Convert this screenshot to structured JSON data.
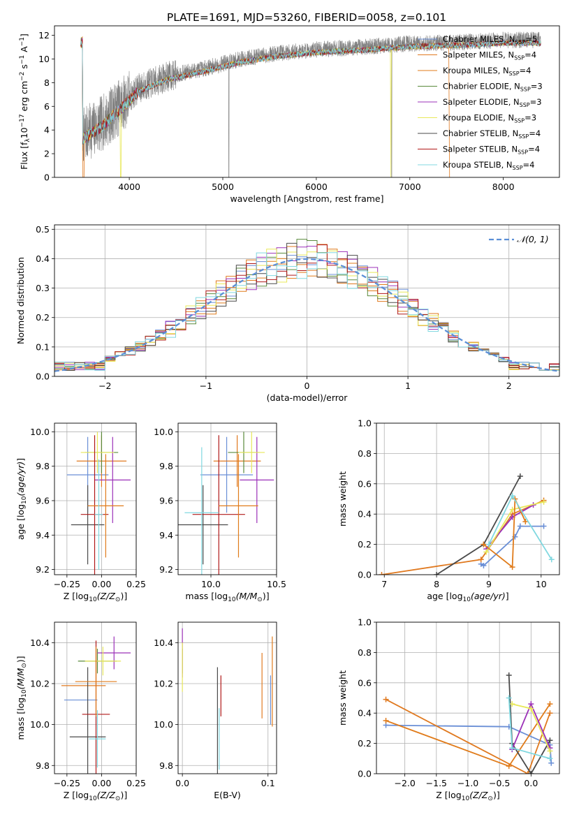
{
  "figure_title": "PLATE=1691, MJD=53260, FIBERID=0058, z=0.101",
  "model_colors": [
    "#6a8fd6",
    "#e0791f",
    "#e07b1a",
    "#5a8a3c",
    "#9b30b8",
    "#e8e85a",
    "#4a4a4a",
    "#b01818",
    "#80d8e0"
  ],
  "legend_labels": [
    {
      "name": "Chabrier MILES",
      "n": "=5"
    },
    {
      "name": "Salpeter MILES",
      "n": "=4"
    },
    {
      "name": "Kroupa MILES",
      "n": "=4"
    },
    {
      "name": "Chabrier ELODIE",
      "n": "=3"
    },
    {
      "name": "Salpeter ELODIE",
      "n": "=3"
    },
    {
      "name": "Kroupa ELODIE",
      "n": "=3"
    },
    {
      "name": "Chabrier STELIB",
      "n": "=4"
    },
    {
      "name": "Salpeter STELIB",
      "n": "=4"
    },
    {
      "name": "Kroupa STELIB",
      "n": "=4"
    }
  ],
  "chart_data": [
    {
      "id": "spectrum",
      "type": "line",
      "xlabel": "wavelength [Angstrom, rest frame]",
      "ylabel": "Flux [f",
      "xlim": [
        3200,
        8600
      ],
      "ylim": [
        0,
        12.8
      ],
      "xticks": [
        4000,
        5000,
        6000,
        7000,
        8000
      ],
      "yticks": [
        0,
        2,
        4,
        6,
        8,
        10,
        12
      ],
      "legend": "top-right",
      "data_shape": {
        "start": 3500,
        "end": 8400,
        "continuum": [
          [
            3500,
            3.5
          ],
          [
            3700,
            4.5
          ],
          [
            3900,
            6.0
          ],
          [
            4100,
            7.5
          ],
          [
            4400,
            8.5
          ],
          [
            4800,
            9.2
          ],
          [
            5200,
            10.0
          ],
          [
            5600,
            10.5
          ],
          [
            6000,
            10.8
          ],
          [
            6500,
            11.0
          ],
          [
            7000,
            11.3
          ],
          [
            7500,
            11.4
          ],
          [
            8000,
            11.6
          ],
          [
            8400,
            11.6
          ]
        ]
      }
    },
    {
      "id": "residuals",
      "type": "line",
      "xlabel": "(data-model)/error",
      "ylabel": "Normed distribution",
      "xlim": [
        -2.5,
        2.5
      ],
      "ylim": [
        0,
        0.515
      ],
      "xticks": [
        -2,
        -1,
        0,
        1,
        2
      ],
      "yticks": [
        0.0,
        0.1,
        0.2,
        0.3,
        0.4,
        0.5
      ],
      "legend": "top-right",
      "reference_label": "𝒩(0, 1)",
      "bin_width": 0.1
    },
    {
      "id": "z-age",
      "type": "scatter",
      "xlabel": "Z [log",
      "ylabel": "age  [log",
      "xlim": [
        -0.34,
        0.25
      ],
      "ylim": [
        9.17,
        10.05
      ],
      "xticks": [
        -0.25,
        0.0,
        0.25
      ],
      "yticks": [
        9.2,
        9.4,
        9.6,
        9.8,
        10.0
      ],
      "points": [
        {
          "x": -0.1,
          "y": 9.75,
          "xerr": 0.15,
          "yerr": 0.22,
          "c": 0
        },
        {
          "x": 0.0,
          "y": 9.83,
          "xerr": 0.18,
          "yerr": 0.15,
          "c": 1
        },
        {
          "x": 0.0,
          "y": 9.88,
          "xerr": 0.12,
          "yerr": 0.12,
          "c": 3
        },
        {
          "x": 0.08,
          "y": 9.72,
          "xerr": 0.13,
          "yerr": 0.25,
          "c": 4
        },
        {
          "x": -0.03,
          "y": 9.88,
          "xerr": 0.12,
          "yerr": 0.12,
          "c": 5
        },
        {
          "x": -0.1,
          "y": 9.46,
          "xerr": 0.12,
          "yerr": 0.23,
          "c": 6
        },
        {
          "x": -0.05,
          "y": 9.52,
          "xerr": 0.1,
          "yerr": 0.46,
          "c": 7
        },
        {
          "x": 0.03,
          "y": 9.57,
          "xerr": 0.13,
          "yerr": 0.3,
          "c": 2
        },
        {
          "x": -0.02,
          "y": 9.52,
          "xerr": 0.03,
          "yerr": 0.32,
          "c": 8
        }
      ]
    },
    {
      "id": "mass-age",
      "type": "scatter",
      "xlabel": "mass [log",
      "ylabel": "",
      "xlim": [
        9.75,
        10.5
      ],
      "ylim": [
        9.17,
        10.05
      ],
      "xticks": [
        10.0,
        10.5
      ],
      "yticks": [
        9.2,
        9.4,
        9.6,
        9.8,
        10.0
      ],
      "points": [
        {
          "x": 10.12,
          "y": 9.75,
          "xerr": 0.2,
          "yerr": 0.22,
          "c": 0
        },
        {
          "x": 10.2,
          "y": 9.83,
          "xerr": 0.18,
          "yerr": 0.15,
          "c": 1
        },
        {
          "x": 10.25,
          "y": 9.88,
          "xerr": 0.12,
          "yerr": 0.12,
          "c": 3
        },
        {
          "x": 10.35,
          "y": 9.72,
          "xerr": 0.13,
          "yerr": 0.25,
          "c": 4
        },
        {
          "x": 10.31,
          "y": 9.88,
          "xerr": 0.1,
          "yerr": 0.12,
          "c": 5
        },
        {
          "x": 9.94,
          "y": 9.46,
          "xerr": 0.19,
          "yerr": 0.23,
          "c": 6
        },
        {
          "x": 10.06,
          "y": 9.52,
          "xerr": 0.2,
          "yerr": 0.46,
          "c": 7
        },
        {
          "x": 10.21,
          "y": 9.57,
          "xerr": 0.15,
          "yerr": 0.3,
          "c": 2
        },
        {
          "x": 9.93,
          "y": 9.53,
          "xerr": 0.13,
          "yerr": 0.38,
          "c": 8
        }
      ]
    },
    {
      "id": "age-weight",
      "type": "line",
      "xlabel": "age  [log",
      "ylabel": "mass weight",
      "xlim": [
        6.85,
        10.35
      ],
      "ylim": [
        0,
        1
      ],
      "xticks": [
        7,
        8,
        9,
        10
      ],
      "yticks": [
        0.0,
        0.2,
        0.4,
        0.6,
        0.8,
        1.0
      ],
      "series": [
        {
          "c": 0,
          "points": [
            [
              8.85,
              0.07
            ],
            [
              8.9,
              0.06
            ],
            [
              9.5,
              0.25
            ],
            [
              9.6,
              0.32
            ],
            [
              10.05,
              0.32
            ]
          ]
        },
        {
          "c": 1,
          "points": [
            [
              6.95,
              0.0
            ],
            [
              8.85,
              0.1
            ],
            [
              9.45,
              0.4
            ],
            [
              10.05,
              0.49
            ]
          ]
        },
        {
          "c": 6,
          "points": [
            [
              8.0,
              0.0
            ],
            [
              8.9,
              0.2
            ],
            [
              9.6,
              0.65
            ]
          ]
        },
        {
          "c": 4,
          "points": [
            [
              8.95,
              0.17
            ],
            [
              9.45,
              0.38
            ],
            [
              9.85,
              0.46
            ]
          ]
        },
        {
          "c": 5,
          "points": [
            [
              8.95,
              0.15
            ],
            [
              9.45,
              0.43
            ],
            [
              10.05,
              0.48
            ]
          ]
        },
        {
          "c": 2,
          "points": [
            [
              8.9,
              0.2
            ],
            [
              9.45,
              0.05
            ],
            [
              9.5,
              0.5
            ],
            [
              9.7,
              0.35
            ]
          ]
        },
        {
          "c": 8,
          "points": [
            [
              9.0,
              0.2
            ],
            [
              9.45,
              0.52
            ],
            [
              10.2,
              0.1
            ]
          ]
        }
      ]
    },
    {
      "id": "z-mass",
      "type": "scatter",
      "xlabel": "Z [log",
      "ylabel": "mass [log",
      "xlim": [
        -0.34,
        0.25
      ],
      "ylim": [
        9.76,
        10.5
      ],
      "xticks": [
        -0.25,
        0.0,
        0.25
      ],
      "yticks": [
        9.8,
        10.0,
        10.2,
        10.4
      ],
      "points": [
        {
          "x": -0.15,
          "y": 10.12,
          "xerr": 0.12,
          "yerr": 0.0,
          "c": 0
        },
        {
          "x": -0.13,
          "y": 10.19,
          "xerr": 0.16,
          "yerr": 0.0,
          "c": 1
        },
        {
          "x": -0.03,
          "y": 10.31,
          "xerr": 0.14,
          "yerr": 0.06,
          "c": 3
        },
        {
          "x": 0.09,
          "y": 10.35,
          "xerr": 0.12,
          "yerr": 0.08,
          "c": 4
        },
        {
          "x": 0.01,
          "y": 10.31,
          "xerr": 0.13,
          "yerr": 0.07,
          "c": 5
        },
        {
          "x": -0.1,
          "y": 9.94,
          "xerr": 0.13,
          "yerr": 0.34,
          "c": 6
        },
        {
          "x": -0.04,
          "y": 10.05,
          "xerr": 0.1,
          "yerr": 0.36,
          "c": 7
        },
        {
          "x": -0.04,
          "y": 10.21,
          "xerr": 0.15,
          "yerr": 0.17,
          "c": 2
        },
        {
          "x": -0.03,
          "y": 9.93,
          "xerr": 0.06,
          "yerr": 0.14,
          "c": 8
        }
      ]
    },
    {
      "id": "ebv-mass",
      "type": "scatter",
      "xlabel": "E(B-V)",
      "ylabel": "",
      "xlim": [
        -0.005,
        0.11
      ],
      "ylim": [
        9.76,
        10.5
      ],
      "xticks": [
        0.0,
        0.1
      ],
      "yticks": [
        9.8,
        10.0,
        10.2,
        10.4
      ],
      "points": [
        {
          "x": 0.103,
          "y": 10.12,
          "yerr": 0.12,
          "c": 0
        },
        {
          "x": 0.093,
          "y": 10.19,
          "yerr": 0.16,
          "c": 1
        },
        {
          "x": 0.0,
          "y": 10.31,
          "yerr": 0.06,
          "c": 3
        },
        {
          "x": 0.0,
          "y": 10.35,
          "yerr": 0.12,
          "c": 4
        },
        {
          "x": 0.0,
          "y": 10.28,
          "yerr": 0.12,
          "c": 5
        },
        {
          "x": 0.041,
          "y": 9.94,
          "yerr": 0.34,
          "c": 6
        },
        {
          "x": 0.045,
          "y": 10.14,
          "yerr": 0.1,
          "c": 7
        },
        {
          "x": 0.105,
          "y": 10.21,
          "yerr": 0.22,
          "c": 2
        },
        {
          "x": 0.043,
          "y": 9.93,
          "yerr": 0.15,
          "c": 8
        }
      ]
    },
    {
      "id": "z-weight",
      "type": "line",
      "xlabel": "Z [log",
      "ylabel": "mass weight",
      "xlim": [
        -2.45,
        0.45
      ],
      "ylim": [
        0,
        1
      ],
      "xticks": [
        -2.0,
        -1.5,
        -1.0,
        -0.5,
        0.0
      ],
      "yticks": [
        0.0,
        0.2,
        0.4,
        0.6,
        0.8,
        1.0
      ],
      "series": [
        {
          "c": 0,
          "points": [
            [
              -2.3,
              0.32
            ],
            [
              -0.35,
              0.31
            ],
            [
              0.3,
              0.19
            ],
            [
              0.32,
              0.07
            ]
          ]
        },
        {
          "c": 1,
          "points": [
            [
              -2.3,
              0.49
            ],
            [
              -0.05,
              0.0
            ],
            [
              0.3,
              0.4
            ]
          ]
        },
        {
          "c": 2,
          "points": [
            [
              -2.3,
              0.35
            ],
            [
              -0.35,
              0.05
            ],
            [
              0.3,
              0.46
            ]
          ]
        },
        {
          "c": 6,
          "points": [
            [
              -0.35,
              0.65
            ],
            [
              -0.3,
              0.2
            ],
            [
              0.0,
              0.0
            ],
            [
              0.3,
              0.22
            ]
          ]
        },
        {
          "c": 4,
          "points": [
            [
              -0.3,
              0.16
            ],
            [
              0.0,
              0.46
            ],
            [
              0.3,
              0.17
            ]
          ]
        },
        {
          "c": 5,
          "points": [
            [
              -0.3,
              0.46
            ],
            [
              0.0,
              0.43
            ],
            [
              0.3,
              0.15
            ]
          ]
        },
        {
          "c": 8,
          "points": [
            [
              -0.35,
              0.5
            ],
            [
              -0.3,
              0.17
            ],
            [
              0.3,
              0.1
            ]
          ]
        }
      ]
    }
  ]
}
